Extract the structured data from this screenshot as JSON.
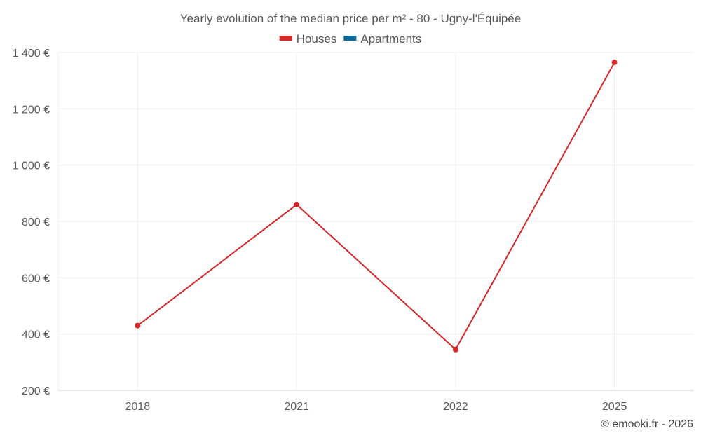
{
  "chart_data": {
    "type": "line",
    "title": "Yearly evolution of the median price per m² - 80 - Ugny-l'Équipée",
    "categories": [
      "2018",
      "2021",
      "2022",
      "2025"
    ],
    "series": [
      {
        "name": "Houses",
        "color": "#d62728",
        "values": [
          430,
          860,
          345,
          1365
        ]
      },
      {
        "name": "Apartments",
        "color": "#0b6a9a",
        "values": [
          null,
          null,
          null,
          null
        ]
      }
    ],
    "y_ticks": [
      200,
      400,
      600,
      800,
      1000,
      1200,
      1400
    ],
    "y_tick_labels": [
      "200 €",
      "400 €",
      "600 €",
      "800 €",
      "1 000 €",
      "1 200 €",
      "1 400 €"
    ],
    "ylim": [
      200,
      1400
    ],
    "xlabel": "",
    "ylabel": "",
    "grid": true,
    "legend_position": "top-center"
  },
  "credit": "© emooki.fr - 2026"
}
